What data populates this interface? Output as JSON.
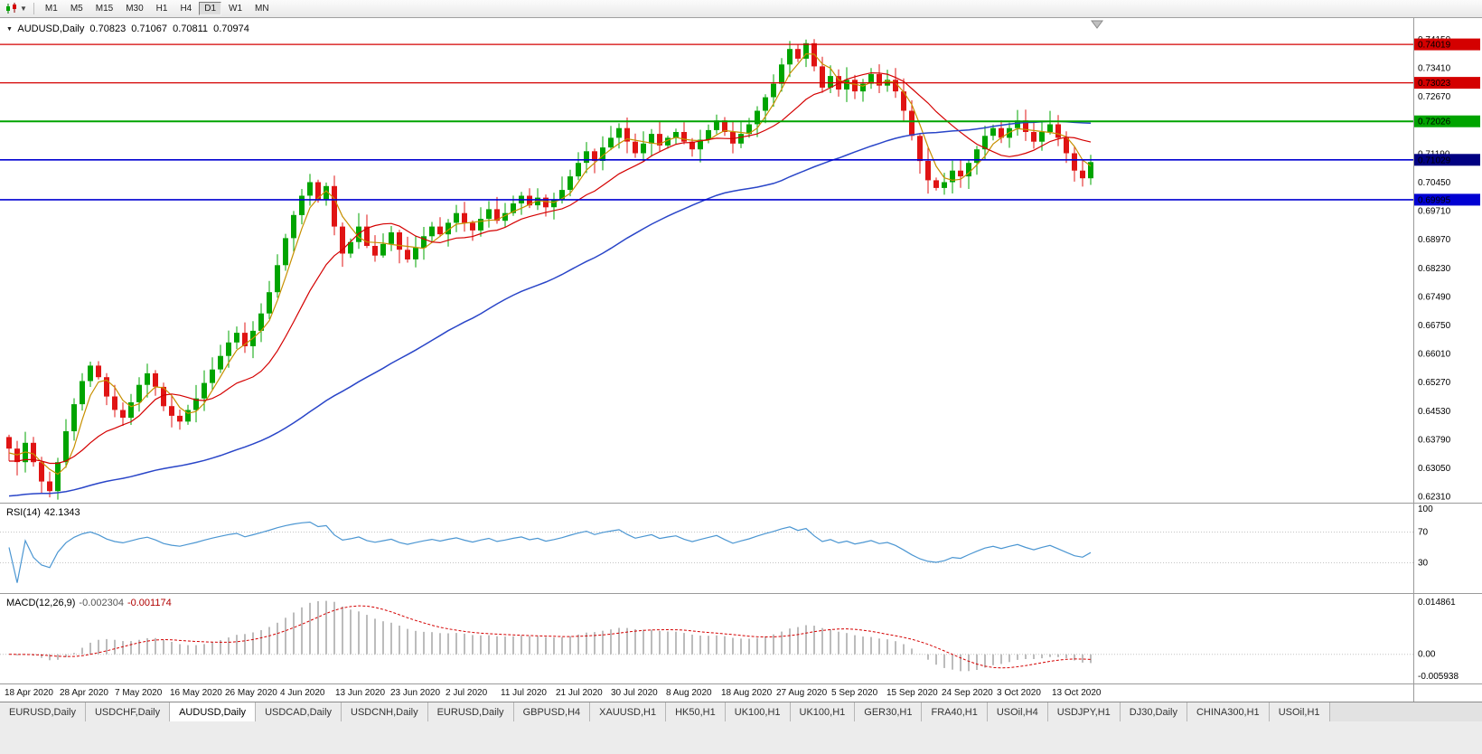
{
  "toolbar": {
    "chart_icon": "candlestick-chart-icon",
    "timeframes": [
      {
        "label": "M1"
      },
      {
        "label": "M5"
      },
      {
        "label": "M15"
      },
      {
        "label": "M30"
      },
      {
        "label": "H1"
      },
      {
        "label": "H4"
      },
      {
        "label": "D1",
        "active": true
      },
      {
        "label": "W1"
      },
      {
        "label": "MN"
      }
    ]
  },
  "chart": {
    "title": {
      "symbol": "AUDUSD,Daily",
      "open": "0.70823",
      "high": "0.71067",
      "low": "0.70811",
      "close": "0.70974"
    },
    "price_range": {
      "max": 0.747,
      "min": 0.6215
    },
    "y_ticks": [
      "0.74150",
      "0.73410",
      "0.72670",
      "0.71190",
      "0.70450",
      "0.69710",
      "0.68970",
      "0.68230",
      "0.67490",
      "0.66750",
      "0.66010",
      "0.65270",
      "0.64530",
      "0.63790",
      "0.63050",
      "0.62310"
    ],
    "levels": [
      {
        "label": "0.74019",
        "value": 0.74019,
        "line": "#d40000",
        "badge": "#d40000",
        "width": 1.3
      },
      {
        "label": "0.73023",
        "value": 0.73023,
        "line": "#d40000",
        "badge": "#d40000",
        "width": 1.3
      },
      {
        "label": "0.72026",
        "value": 0.72026,
        "line": "#00a400",
        "badge": "#00a400",
        "width": 2
      },
      {
        "label": "0.71029",
        "value": 0.71029,
        "line": "#0000d2",
        "badge": "#000082",
        "width": 1.6,
        "current": true
      },
      {
        "label": "0.69995",
        "value": 0.69995,
        "line": "#0000d2",
        "badge": "#0000d2",
        "width": 1.6
      }
    ]
  },
  "rsi": {
    "label": "RSI(14)",
    "value": "42.1343",
    "period": 14,
    "color": "#4b96d2",
    "axis_labels": [
      "100",
      "70",
      "30"
    ],
    "axis_values": [
      100,
      70,
      30
    ],
    "guide_levels": [
      70,
      30
    ]
  },
  "macd": {
    "label": "MACD(12,26,9)",
    "main_value": "-0.002304",
    "signal_value": "-0.001174",
    "fast": 12,
    "slow": 26,
    "signal": 9,
    "axis_labels": [
      "0.014861",
      "0.00",
      "-0.005938"
    ],
    "range": {
      "max": 0.014861,
      "min": -0.005938
    },
    "hist_color": "#b4b4b4",
    "signal_color": "#d40000"
  },
  "chart_data": {
    "type": "candlestick",
    "symbol": "AUDUSD",
    "timeframe": "Daily",
    "title": "AUDUSD,Daily 0.70823 0.71067 0.70811 0.70974",
    "x_labels": [
      "18 Apr 2020",
      "28 Apr 2020",
      "7 May 2020",
      "16 May 2020",
      "26 May 2020",
      "4 Jun 2020",
      "13 Jun 2020",
      "23 Jun 2020",
      "2 Jul 2020",
      "11 Jul 2020",
      "21 Jul 2020",
      "30 Jul 2020",
      "8 Aug 2020",
      "18 Aug 2020",
      "27 Aug 2020",
      "5 Sep 2020",
      "15 Sep 2020",
      "24 Sep 2020",
      "3 Oct 2020",
      "13 Oct 2020"
    ],
    "first_open": 0.6385,
    "closes": [
      0.6355,
      0.632,
      0.637,
      0.632,
      0.627,
      0.6245,
      0.632,
      0.64,
      0.647,
      0.653,
      0.657,
      0.654,
      0.649,
      0.6455,
      0.6435,
      0.6475,
      0.652,
      0.655,
      0.6515,
      0.6465,
      0.644,
      0.6425,
      0.6455,
      0.6485,
      0.6525,
      0.656,
      0.6595,
      0.663,
      0.6655,
      0.662,
      0.666,
      0.6705,
      0.676,
      0.683,
      0.69,
      0.696,
      0.701,
      0.7045,
      0.7,
      0.7035,
      0.693,
      0.686,
      0.689,
      0.693,
      0.688,
      0.6855,
      0.6885,
      0.6915,
      0.687,
      0.6845,
      0.6875,
      0.6905,
      0.693,
      0.691,
      0.694,
      0.6965,
      0.694,
      0.692,
      0.695,
      0.6975,
      0.6945,
      0.6965,
      0.699,
      0.701,
      0.6985,
      0.7005,
      0.698,
      0.7,
      0.7025,
      0.706,
      0.7095,
      0.7125,
      0.71,
      0.7135,
      0.716,
      0.7185,
      0.715,
      0.712,
      0.7145,
      0.717,
      0.714,
      0.716,
      0.7175,
      0.715,
      0.713,
      0.7155,
      0.718,
      0.7205,
      0.7175,
      0.7145,
      0.717,
      0.7195,
      0.723,
      0.7265,
      0.73,
      0.735,
      0.739,
      0.7365,
      0.7405,
      0.7345,
      0.729,
      0.732,
      0.7285,
      0.731,
      0.728,
      0.73,
      0.7325,
      0.7295,
      0.731,
      0.728,
      0.723,
      0.7165,
      0.71,
      0.705,
      0.703,
      0.7045,
      0.7075,
      0.706,
      0.7095,
      0.713,
      0.7165,
      0.7185,
      0.716,
      0.7185,
      0.7205,
      0.7175,
      0.715,
      0.7175,
      0.7195,
      0.716,
      0.712,
      0.7075,
      0.7055,
      0.7097
    ],
    "last_ohlc": {
      "open": 0.70823,
      "high": 0.71067,
      "low": 0.70811,
      "close": 0.70974
    },
    "moving_averages": [
      {
        "name": "fast",
        "period": 4,
        "pre": 0.634,
        "color": "#c79000"
      },
      {
        "name": "medium",
        "period": 13,
        "pre": 0.632,
        "color": "#d40000"
      },
      {
        "name": "slow",
        "period": 55,
        "pre": 0.623,
        "color": "#2945c8"
      }
    ],
    "colors": {
      "up": "#00a400",
      "down": "#e01414"
    }
  },
  "tabbar": {
    "tabs": [
      {
        "label": "EURUSD,Daily"
      },
      {
        "label": "USDCHF,Daily"
      },
      {
        "label": "AUDUSD,Daily",
        "active": true
      },
      {
        "label": "USDCAD,Daily"
      },
      {
        "label": "USDCNH,Daily"
      },
      {
        "label": "EURUSD,Daily"
      },
      {
        "label": "GBPUSD,H4"
      },
      {
        "label": "XAUUSD,H1"
      },
      {
        "label": "HK50,H1"
      },
      {
        "label": "UK100,H1"
      },
      {
        "label": "UK100,H1"
      },
      {
        "label": "GER30,H1"
      },
      {
        "label": "FRA40,H1"
      },
      {
        "label": "USOil,H4"
      },
      {
        "label": "USDJPY,H1"
      },
      {
        "label": "DJ30,Daily"
      },
      {
        "label": "CHINA300,H1"
      },
      {
        "label": "USOil,H1"
      }
    ]
  }
}
